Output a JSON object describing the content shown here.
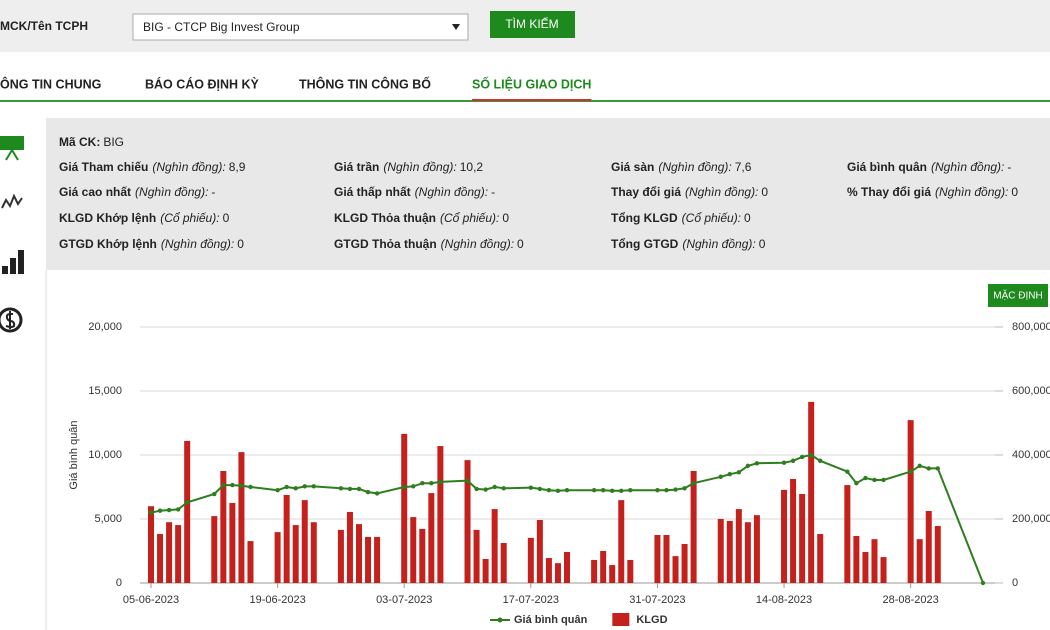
{
  "search": {
    "label": "MCK/Tên TCPH",
    "selected": "BIG - CTCP Big Invest Group",
    "button": "TÌM KIẾM"
  },
  "tabs": [
    "ÔNG TIN CHUNG",
    "BÁO CÁO ĐỊNH KỲ",
    "THÔNG TIN CÔNG BỐ",
    "SỐ LIỆU GIAO DỊCH"
  ],
  "active_tab": 3,
  "info": {
    "rows": [
      [
        {
          "label": "Mã CK:",
          "value": "BIG"
        }
      ],
      [
        {
          "label": "Giá Tham chiếu",
          "unit": "(Nghìn đồng):",
          "value": "8,9"
        },
        {
          "label": "Giá trần",
          "unit": "(Nghìn đồng):",
          "value": "10,2"
        },
        {
          "label": "Giá sàn",
          "unit": "(Nghìn đồng):",
          "value": "7,6"
        },
        {
          "label": "Giá bình quân",
          "unit": "(Nghìn đồng):",
          "value": "-"
        }
      ],
      [
        {
          "label": "Giá cao nhất",
          "unit": "(Nghìn đồng):",
          "value": "-"
        },
        {
          "label": "Giá thấp nhất",
          "unit": "(Nghìn đồng):",
          "value": "-"
        },
        {
          "label": "Thay đổi giá",
          "unit": "(Nghìn đồng):",
          "value": "0"
        },
        {
          "label": "% Thay đổi giá",
          "unit": "(Nghìn đồng):",
          "value": "0"
        }
      ],
      [
        {
          "label": "KLGD Khớp lệnh",
          "unit": "(Cổ phiếu):",
          "value": "0"
        },
        {
          "label": "KLGD Thỏa thuận",
          "unit": "(Cổ phiếu):",
          "value": "0"
        },
        {
          "label": "Tổng KLGD",
          "unit": "(Cổ phiếu):",
          "value": "0"
        }
      ],
      [
        {
          "label": "GTGD Khớp lệnh",
          "unit": "(Nghìn đồng):",
          "value": "0"
        },
        {
          "label": "GTGD Thỏa thuận",
          "unit": "(Nghìn đồng):",
          "value": "0"
        },
        {
          "label": "Tổng GTGD",
          "unit": "(Nghìn đồng):",
          "value": "0"
        }
      ]
    ]
  },
  "chart_data": {
    "type": "combo",
    "reset_button": "MẶC ĐỊNH",
    "ylabel": "Giá bình quân",
    "x": [
      "05-06-2023",
      "06-06-2023",
      "07-06-2023",
      "08-06-2023",
      "09-06-2023",
      "12-06-2023",
      "13-06-2023",
      "14-06-2023",
      "15-06-2023",
      "16-06-2023",
      "19-06-2023",
      "20-06-2023",
      "21-06-2023",
      "22-06-2023",
      "23-06-2023",
      "26-06-2023",
      "27-06-2023",
      "28-06-2023",
      "29-06-2023",
      "30-06-2023",
      "03-07-2023",
      "04-07-2023",
      "05-07-2023",
      "06-07-2023",
      "07-07-2023",
      "10-07-2023",
      "11-07-2023",
      "12-07-2023",
      "13-07-2023",
      "14-07-2023",
      "17-07-2023",
      "18-07-2023",
      "19-07-2023",
      "20-07-2023",
      "21-07-2023",
      "24-07-2023",
      "25-07-2023",
      "26-07-2023",
      "27-07-2023",
      "28-07-2023",
      "31-07-2023",
      "01-08-2023",
      "02-08-2023",
      "03-08-2023",
      "04-08-2023",
      "07-08-2023",
      "08-08-2023",
      "09-08-2023",
      "10-08-2023",
      "11-08-2023",
      "14-08-2023",
      "15-08-2023",
      "16-08-2023",
      "17-08-2023",
      "18-08-2023",
      "21-08-2023",
      "22-08-2023",
      "23-08-2023",
      "24-08-2023",
      "25-08-2023",
      "28-08-2023",
      "29-08-2023",
      "30-08-2023",
      "31-08-2023",
      "05-09-2023"
    ],
    "xticks": [
      "05-06-2023",
      "19-06-2023",
      "03-07-2023",
      "17-07-2023",
      "31-07-2023",
      "14-08-2023",
      "28-08-2023"
    ],
    "series": [
      {
        "name": "Giá bình quân",
        "type": "line",
        "color": "#2e7d1e",
        "values": [
          5500,
          5650,
          5700,
          5750,
          6300,
          6950,
          7650,
          7650,
          7600,
          7500,
          7250,
          7500,
          7400,
          7550,
          7550,
          7400,
          7350,
          7350,
          7100,
          7000,
          7500,
          7550,
          7800,
          7800,
          7900,
          8000,
          7350,
          7300,
          7500,
          7400,
          7450,
          7350,
          7250,
          7200,
          7250,
          7250,
          7250,
          7200,
          7200,
          7250,
          7250,
          7250,
          7300,
          7400,
          7800,
          8300,
          8500,
          8650,
          9150,
          9350,
          9400,
          9550,
          9850,
          10000,
          9550,
          8700,
          7800,
          8200,
          8050,
          8050,
          8700,
          9150,
          8950,
          8950,
          0
        ]
      },
      {
        "name": "KLGD",
        "type": "bar",
        "axis": "y2",
        "color": "#c4201c",
        "values": [
          240000,
          153000,
          190000,
          181000,
          444000,
          209000,
          350000,
          250000,
          409000,
          131000,
          159000,
          275000,
          181000,
          259000,
          190000,
          166000,
          222000,
          184000,
          144000,
          144000,
          466000,
          206000,
          169000,
          281000,
          428000,
          384000,
          166000,
          75000,
          231000,
          125000,
          141000,
          197000,
          78000,
          62000,
          97000,
          72000,
          100000,
          56000,
          259000,
          72000,
          150000,
          150000,
          84000,
          122000,
          350000,
          200000,
          194000,
          231000,
          190000,
          212000,
          291000,
          325000,
          278000,
          566000,
          153000,
          306000,
          147000,
          97000,
          137000,
          81000,
          509000,
          137000,
          225000,
          178000,
          0
        ]
      }
    ],
    "ylim": [
      0,
      20000
    ],
    "yticks": [
      {
        "value": 0,
        "label": "0"
      },
      {
        "value": 5000,
        "label": "5,000"
      },
      {
        "value": 10000,
        "label": "10,000"
      },
      {
        "value": 15000,
        "label": "15,000"
      },
      {
        "value": 20000,
        "label": "20,000"
      }
    ],
    "y2lim": [
      0,
      800000
    ],
    "y2ticks": [
      {
        "value": 0,
        "label": "0"
      },
      {
        "value": 200000,
        "label": "200,000"
      },
      {
        "value": 400000,
        "label": "400,000"
      },
      {
        "value": 600000,
        "label": "600,000"
      },
      {
        "value": 800000,
        "label": "800,000"
      }
    ],
    "grid": true
  }
}
